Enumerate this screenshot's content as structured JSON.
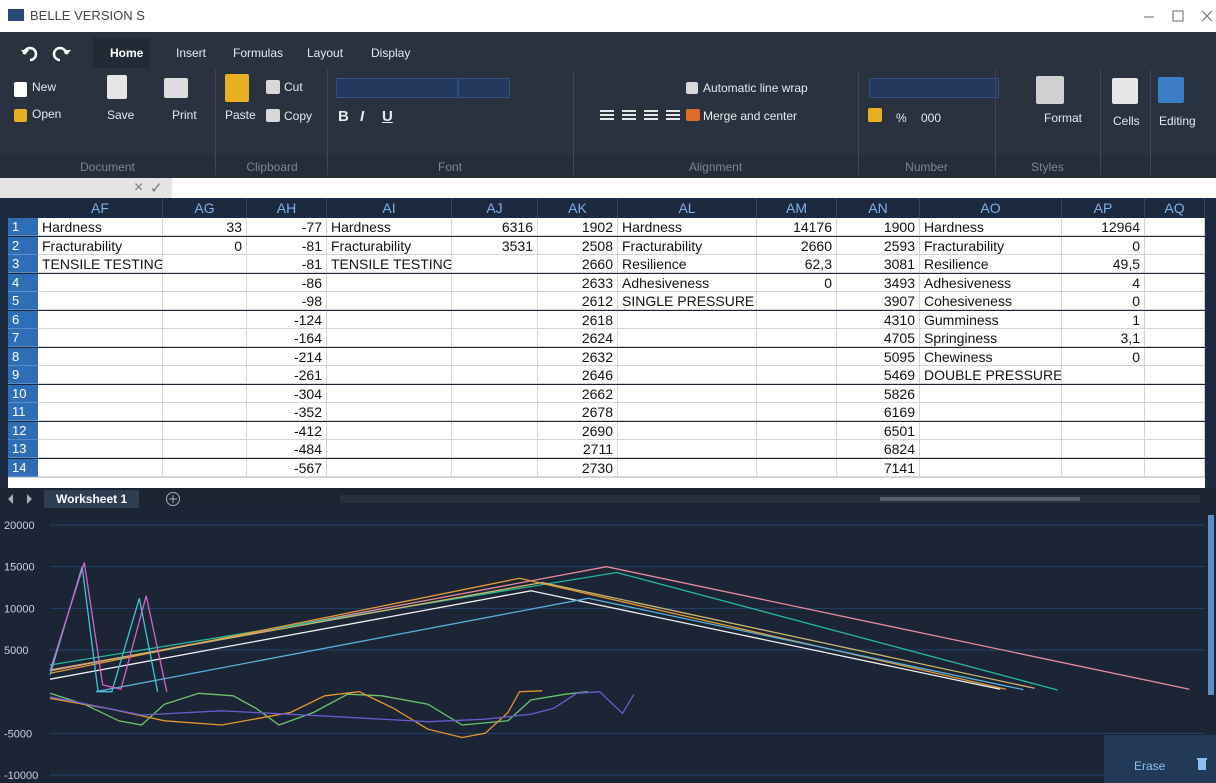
{
  "window": {
    "title": "BELLE VERSION S"
  },
  "ribbon": {
    "tabs": [
      "Home",
      "Insert",
      "Formulas",
      "Layout",
      "Display"
    ],
    "buttons": {
      "new": "New",
      "open": "Open",
      "save": "Save",
      "print": "Print",
      "paste": "Paste",
      "cut": "Cut",
      "copy": "Copy",
      "wrap": "Automatic line wrap",
      "merge": "Merge and center",
      "percent": "%",
      "thousands": "000",
      "format": "Format",
      "cells": "Cells",
      "editing": "Editing"
    },
    "font_buttons": [
      "B",
      "I",
      "U"
    ],
    "groups": [
      "Document",
      "Clipboard",
      "Font",
      "Alignment",
      "Number",
      "Styles"
    ]
  },
  "formula_bar": {
    "cancel": "×",
    "confirm": "✓"
  },
  "sheet": {
    "columns": [
      "AF",
      "AG",
      "AH",
      "AI",
      "AJ",
      "AK",
      "AL",
      "AM",
      "AN",
      "AO",
      "AP",
      "AQ"
    ],
    "rows": [
      1,
      2,
      3,
      4,
      5,
      6,
      7,
      8,
      9,
      10,
      11,
      12,
      13,
      14
    ],
    "cells": [
      [
        "Hardness",
        33,
        -77,
        "Hardness",
        6316,
        1902,
        "Hardness",
        14176,
        1900,
        "Hardness",
        12964,
        null
      ],
      [
        "Fracturability",
        0,
        -81,
        "Fracturability",
        3531,
        2508,
        "Fracturability",
        2660,
        2593,
        "Fracturability",
        0,
        null
      ],
      [
        "TENSILE TESTING",
        null,
        -81,
        "TENSILE TESTING",
        null,
        2660,
        "Resilience",
        "62,3",
        3081,
        "Resilience",
        "49,5",
        null
      ],
      [
        null,
        null,
        -86,
        null,
        null,
        2633,
        "Adhesiveness",
        0,
        3493,
        "Adhesiveness",
        4,
        null
      ],
      [
        null,
        null,
        -98,
        null,
        null,
        2612,
        "SINGLE PRESSURE",
        null,
        3907,
        "Cohesiveness",
        0,
        null
      ],
      [
        null,
        null,
        -124,
        null,
        null,
        2618,
        null,
        null,
        4310,
        "Gumminess",
        1,
        null
      ],
      [
        null,
        null,
        -164,
        null,
        null,
        2624,
        null,
        null,
        4705,
        "Springiness",
        "3,1",
        null
      ],
      [
        null,
        null,
        -214,
        null,
        null,
        2632,
        null,
        null,
        5095,
        "Chewiness",
        0,
        null
      ],
      [
        null,
        null,
        -261,
        null,
        null,
        2646,
        null,
        null,
        5469,
        "DOUBLE PRESSURE",
        null,
        null
      ],
      [
        null,
        null,
        -304,
        null,
        null,
        2662,
        null,
        null,
        5826,
        null,
        null,
        null
      ],
      [
        null,
        null,
        -352,
        null,
        null,
        2678,
        null,
        null,
        6169,
        null,
        null,
        null
      ],
      [
        null,
        null,
        -412,
        null,
        null,
        2690,
        null,
        null,
        6501,
        null,
        null,
        null
      ],
      [
        null,
        null,
        -484,
        null,
        null,
        2711,
        null,
        null,
        6824,
        null,
        null,
        null
      ],
      [
        null,
        null,
        -567,
        null,
        null,
        2730,
        null,
        null,
        7141,
        null,
        null,
        null
      ]
    ],
    "tabs": [
      "Worksheet 1"
    ]
  },
  "chart_data": {
    "type": "line",
    "xlim": [
      0,
      100
    ],
    "ylim": [
      -10000,
      20000
    ],
    "yticks": [
      -10000,
      -5000,
      5000,
      10000,
      15000,
      20000
    ],
    "grid": true,
    "series": [
      {
        "color": "#e68a9a",
        "x": [
          0,
          48.6,
          99.5
        ],
        "values": [
          2500,
          15000,
          300
        ]
      },
      {
        "color": "#24b89c",
        "x": [
          0,
          49.5,
          88
        ],
        "values": [
          3200,
          14300,
          200
        ]
      },
      {
        "color": "#e59a35",
        "x": [
          0,
          41,
          83.5
        ],
        "values": [
          2200,
          13600,
          300
        ]
      },
      {
        "color": "#c9b66a",
        "x": [
          0,
          43,
          86
        ],
        "values": [
          2600,
          13100,
          400
        ]
      },
      {
        "color": "#f0f0f0",
        "x": [
          0,
          42,
          83
        ],
        "values": [
          1500,
          12100,
          300
        ]
      },
      {
        "color": "#5aaed8",
        "x": [
          4,
          47,
          85
        ],
        "values": [
          0,
          11200,
          250
        ]
      },
      {
        "color": "#3fc6d0",
        "x": [
          0,
          2.8,
          4.2,
          5.4,
          7.8,
          9.4
        ],
        "values": [
          2000,
          15000,
          0,
          0,
          11200,
          0
        ]
      },
      {
        "color": "#d065c8",
        "x": [
          0,
          3,
          4.6,
          6.2,
          8.4,
          10.2
        ],
        "values": [
          2500,
          15500,
          800,
          300,
          11500,
          0
        ]
      },
      {
        "color": "#6cc46c",
        "x": [
          0,
          3,
          6,
          8,
          10,
          13,
          16,
          18,
          20,
          23,
          26,
          29,
          33,
          36,
          40,
          42,
          45,
          47
        ],
        "values": [
          -200,
          -1500,
          -3500,
          -4000,
          -1500,
          -200,
          -500,
          -2000,
          -4000,
          -2500,
          -300,
          -500,
          -1500,
          -4000,
          -3500,
          -1000,
          -300,
          0
        ]
      },
      {
        "color": "#e8962e",
        "x": [
          0,
          5,
          10,
          15,
          19,
          21,
          24,
          27,
          30,
          33,
          36,
          38,
          40,
          41,
          43
        ],
        "values": [
          -800,
          -2000,
          -3500,
          -4000,
          -3000,
          -2500,
          -500,
          0,
          -2000,
          -4500,
          -5500,
          -5000,
          -2500,
          0,
          100
        ]
      },
      {
        "color": "#6a5acd",
        "x": [
          0,
          8,
          15,
          25,
          33,
          38,
          42,
          44,
          46,
          48,
          50,
          51
        ],
        "values": [
          -600,
          -2800,
          -2300,
          -3000,
          -3600,
          -3300,
          -2700,
          -2000,
          -200,
          0,
          -2600,
          -300
        ]
      }
    ]
  },
  "erase": "Erase"
}
